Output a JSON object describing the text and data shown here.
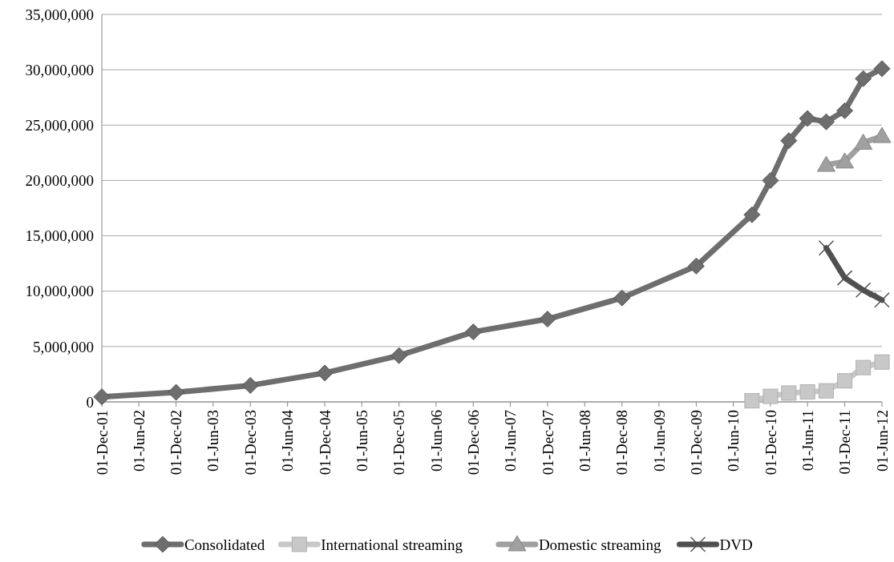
{
  "chart_data": {
    "type": "line",
    "legend": "bottom",
    "grid": "y",
    "ylim": [
      0,
      35000000
    ],
    "yticks": [
      {
        "value": 0,
        "label": "0"
      },
      {
        "value": 5000000,
        "label": "5,000,000"
      },
      {
        "value": 10000000,
        "label": "10,000,000"
      },
      {
        "value": 15000000,
        "label": "15,000,000"
      },
      {
        "value": 20000000,
        "label": "20,000,000"
      },
      {
        "value": 25000000,
        "label": "25,000,000"
      },
      {
        "value": 30000000,
        "label": "30,000,000"
      },
      {
        "value": 35000000,
        "label": "35,000,000"
      }
    ],
    "xlim": [
      "2001-12-01",
      "2012-06-01"
    ],
    "xticks": [
      {
        "value": "2001-12-01",
        "label": "01-Dec-01"
      },
      {
        "value": "2002-06-01",
        "label": "01-Jun-02"
      },
      {
        "value": "2002-12-01",
        "label": "01-Dec-02"
      },
      {
        "value": "2003-06-01",
        "label": "01-Jun-03"
      },
      {
        "value": "2003-12-01",
        "label": "01-Dec-03"
      },
      {
        "value": "2004-06-01",
        "label": "01-Jun-04"
      },
      {
        "value": "2004-12-01",
        "label": "01-Dec-04"
      },
      {
        "value": "2005-06-01",
        "label": "01-Jun-05"
      },
      {
        "value": "2005-12-01",
        "label": "01-Dec-05"
      },
      {
        "value": "2006-06-01",
        "label": "01-Jun-06"
      },
      {
        "value": "2006-12-01",
        "label": "01-Dec-06"
      },
      {
        "value": "2007-06-01",
        "label": "01-Jun-07"
      },
      {
        "value": "2007-12-01",
        "label": "01-Dec-07"
      },
      {
        "value": "2008-06-01",
        "label": "01-Jun-08"
      },
      {
        "value": "2008-12-01",
        "label": "01-Dec-08"
      },
      {
        "value": "2009-06-01",
        "label": "01-Jun-09"
      },
      {
        "value": "2009-12-01",
        "label": "01-Dec-09"
      },
      {
        "value": "2010-06-01",
        "label": "01-Jun-10"
      },
      {
        "value": "2010-12-01",
        "label": "01-Dec-10"
      },
      {
        "value": "2011-06-01",
        "label": "01-Jun-11"
      },
      {
        "value": "2011-12-01",
        "label": "01-Dec-11"
      },
      {
        "value": "2012-06-01",
        "label": "01-Jun-12"
      }
    ],
    "series": [
      {
        "name": "Consolidated",
        "color": "#6e6e6e",
        "marker": "diamond",
        "x": [
          "2001-12-01",
          "2002-12-01",
          "2003-12-01",
          "2004-12-01",
          "2005-12-01",
          "2006-12-01",
          "2007-12-01",
          "2008-12-01",
          "2009-12-01",
          "2010-09-01",
          "2010-12-01",
          "2011-03-01",
          "2011-06-01",
          "2011-09-01",
          "2011-12-01",
          "2012-03-01",
          "2012-06-01"
        ],
        "values": [
          460000,
          860000,
          1490000,
          2610000,
          4180000,
          6320000,
          7480000,
          9390000,
          12270000,
          16900000,
          20000000,
          23600000,
          25600000,
          25300000,
          26300000,
          29200000,
          30100000
        ]
      },
      {
        "name": "International streaming",
        "color": "#c8c8c8",
        "marker": "square",
        "x": [
          "2010-09-01",
          "2010-12-01",
          "2011-03-01",
          "2011-06-01",
          "2011-09-01",
          "2011-12-01",
          "2012-03-01",
          "2012-06-01"
        ],
        "values": [
          100000,
          500000,
          800000,
          900000,
          1000000,
          1900000,
          3100000,
          3600000
        ]
      },
      {
        "name": "Domestic streaming",
        "color": "#a0a0a0",
        "marker": "triangle",
        "x": [
          "2011-09-01",
          "2011-12-01",
          "2012-03-01",
          "2012-06-01"
        ],
        "values": [
          21400000,
          21700000,
          23400000,
          24000000
        ]
      },
      {
        "name": "DVD",
        "color": "#505050",
        "marker": "cross",
        "x": [
          "2011-09-01",
          "2011-12-01",
          "2012-03-01",
          "2012-06-01"
        ],
        "values": [
          13900000,
          11200000,
          10100000,
          9200000
        ]
      }
    ]
  }
}
